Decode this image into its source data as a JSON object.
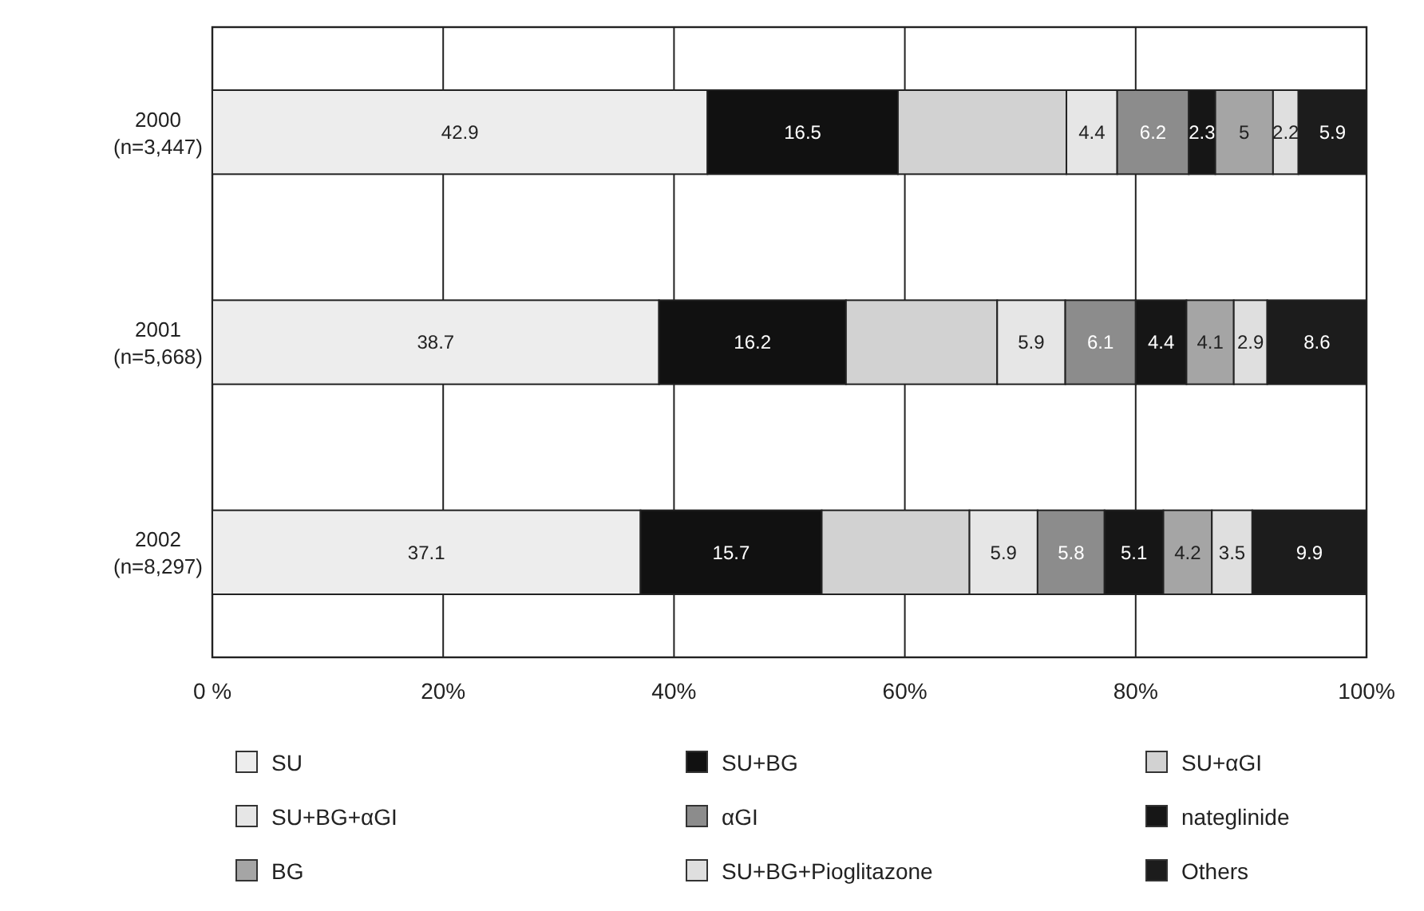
{
  "chart_data": {
    "type": "bar",
    "orientation": "horizontal",
    "stacked": true,
    "categories": [
      "2000\n(n=3,447)",
      "2001\n(n=5,668)",
      "2002\n(n=8,297)"
    ],
    "series": [
      {
        "name": "SU",
        "color": "#ededed",
        "values": [
          42.9,
          38.7,
          37.1
        ],
        "value_labels": [
          "42.9",
          "38.7",
          "37.1"
        ]
      },
      {
        "name": "SU+BG",
        "color": "#111111",
        "values": [
          16.5,
          16.2,
          15.7
        ],
        "value_labels": [
          "16.5",
          "16.2",
          "15.7"
        ]
      },
      {
        "name": "SU+αGI",
        "color": "#d2d2d2",
        "values": [
          14.6,
          13.1,
          12.8
        ],
        "value_labels": [
          null,
          null,
          null
        ]
      },
      {
        "name": "SU+BG+αGI",
        "color": "#e6e6e6",
        "values": [
          4.4,
          5.9,
          5.9
        ],
        "value_labels": [
          "4.4",
          "5.9",
          "5.9"
        ]
      },
      {
        "name": "αGI",
        "color": "#8c8c8c",
        "values": [
          6.2,
          6.1,
          5.8
        ],
        "value_labels": [
          "6.2",
          "6.1",
          "5.8"
        ]
      },
      {
        "name": "nateglinide",
        "color": "#161616",
        "values": [
          2.3,
          4.4,
          5.1
        ],
        "value_labels": [
          "2.3",
          "4.4",
          "5.1"
        ]
      },
      {
        "name": "BG",
        "color": "#a5a5a5",
        "values": [
          5.0,
          4.1,
          4.2
        ],
        "value_labels": [
          "5",
          "4.1",
          "4.2"
        ]
      },
      {
        "name": "SU+BG+Pioglitazone",
        "color": "#dfdfdf",
        "values": [
          2.2,
          2.9,
          3.5
        ],
        "value_labels": [
          "2.2",
          "2.9",
          "3.5"
        ]
      },
      {
        "name": "Others",
        "color": "#1c1c1c",
        "values": [
          5.9,
          8.6,
          9.9
        ],
        "value_labels": [
          "5.9",
          "8.6",
          "9.9"
        ]
      }
    ],
    "xlim": [
      0,
      100
    ],
    "xticks": [
      {
        "value": 0,
        "label": "0 %"
      },
      {
        "value": 20,
        "label": "20%"
      },
      {
        "value": 40,
        "label": "40%"
      },
      {
        "value": 60,
        "label": "60%"
      },
      {
        "value": 80,
        "label": "80%"
      },
      {
        "value": 100,
        "label": "100%"
      }
    ],
    "grid": "x",
    "legend": "bottom"
  }
}
